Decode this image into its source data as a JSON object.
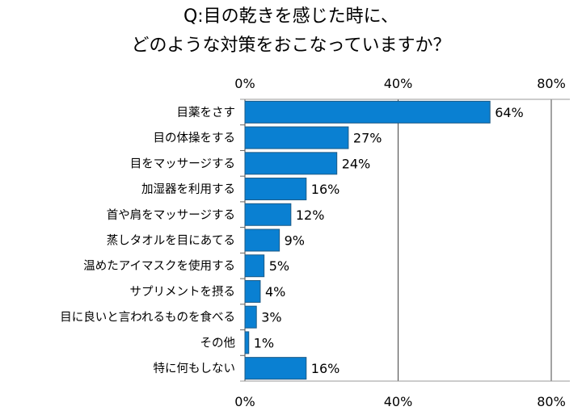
{
  "chart_data": {
    "type": "bar",
    "orientation": "horizontal",
    "title": [
      "Q:目の乾きを感じた時に、",
      "どのような対策をおこなっていますか？"
    ],
    "categories": [
      "目薬をさす",
      "目の体操をする",
      "目をマッサージする",
      "加湿器を利用する",
      "首や肩をマッサージする",
      "蒸しタオルを目にあてる",
      "温めたアイマスクを使用する",
      "サプリメントを摂る",
      "目に良いと言われるものを食べる",
      "その他",
      "特に何もしない"
    ],
    "values": [
      64,
      27,
      24,
      16,
      12,
      9,
      5,
      4,
      3,
      1,
      16
    ],
    "data_labels": [
      "64%",
      "27%",
      "24%",
      "16%",
      "12%",
      "9%",
      "5%",
      "4%",
      "3%",
      "1%",
      "16%"
    ],
    "xlim": [
      0,
      80
    ],
    "ticks": [
      0,
      40,
      80
    ],
    "tick_labels": [
      "0%",
      "40%",
      "80%"
    ],
    "tick_label_positions": "top and bottom",
    "grid": true,
    "bar_color": "#0a80d2",
    "bar_edge_color": "#1d5a86"
  }
}
